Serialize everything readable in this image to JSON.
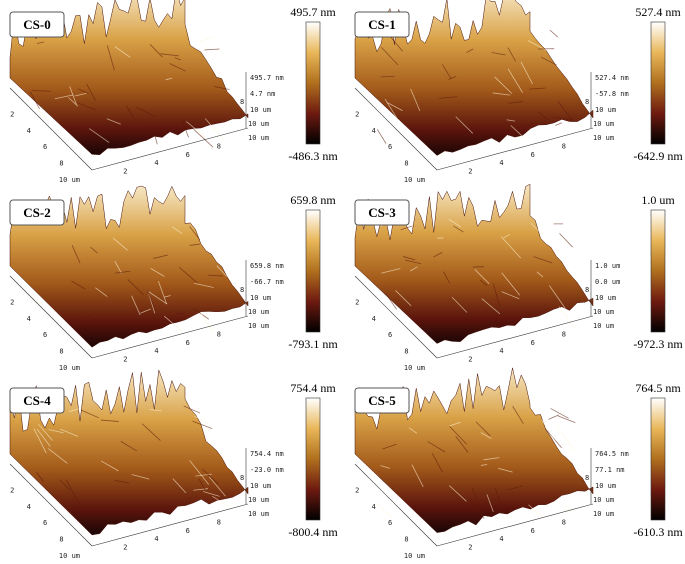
{
  "panels": [
    {
      "label": "CS-0",
      "scale_max": "495.7 nm",
      "scale_min": "-486.3 nm",
      "z_ticks": [
        "495.7 nm",
        "4.7 nm",
        "10 um"
      ],
      "side_ticks": [
        "8",
        "10 um"
      ],
      "left_ticks": [
        "2",
        "4",
        "6",
        "8",
        "10 um"
      ],
      "bottom_ticks": [
        "2",
        "4",
        "6",
        "8",
        "10 um"
      ]
    },
    {
      "label": "CS-1",
      "scale_max": "527.4 nm",
      "scale_min": "-642.9 nm",
      "z_ticks": [
        "527.4 nm",
        "-57.8 nm",
        "10 um"
      ],
      "side_ticks": [
        "8",
        "10 um"
      ],
      "left_ticks": [
        "2",
        "4",
        "6",
        "8",
        "10 um"
      ],
      "bottom_ticks": [
        "2",
        "4",
        "6",
        "8",
        "10 um"
      ]
    },
    {
      "label": "CS-2",
      "scale_max": "659.8 nm",
      "scale_min": "-793.1 nm",
      "z_ticks": [
        "659.8 nm",
        "-66.7 nm",
        "10 um"
      ],
      "side_ticks": [
        "8",
        "10 um"
      ],
      "left_ticks": [
        "2",
        "4",
        "6",
        "8",
        "10 um"
      ],
      "bottom_ticks": [
        "2",
        "4",
        "6",
        "8",
        "10 um"
      ]
    },
    {
      "label": "CS-3",
      "scale_max": "1.0 um",
      "scale_min": "-972.3 nm",
      "z_ticks": [
        "1.0 um",
        "0.0 um",
        "10 um"
      ],
      "side_ticks": [
        "8",
        "10 um"
      ],
      "left_ticks": [
        "2",
        "4",
        "6",
        "8",
        "10 um"
      ],
      "bottom_ticks": [
        "2",
        "4",
        "6",
        "8",
        "10 um"
      ]
    },
    {
      "label": "CS-4",
      "scale_max": "754.4 nm",
      "scale_min": "-800.4 nm",
      "z_ticks": [
        "754.4 nm",
        "-23.0 nm",
        "10 um"
      ],
      "side_ticks": [
        "8",
        "10 um"
      ],
      "left_ticks": [
        "2",
        "4",
        "6",
        "8",
        "10 um"
      ],
      "bottom_ticks": [
        "2",
        "4",
        "6",
        "8",
        "10 um"
      ]
    },
    {
      "label": "CS-5",
      "scale_max": "764.5 nm",
      "scale_min": "-610.3 nm",
      "z_ticks": [
        "764.5 nm",
        "77.1 nm",
        "10 um"
      ],
      "side_ticks": [
        "8",
        "10 um"
      ],
      "left_ticks": [
        "2",
        "4",
        "6",
        "8",
        "10 um"
      ],
      "bottom_ticks": [
        "2",
        "4",
        "6",
        "8",
        "10 um"
      ]
    }
  ]
}
